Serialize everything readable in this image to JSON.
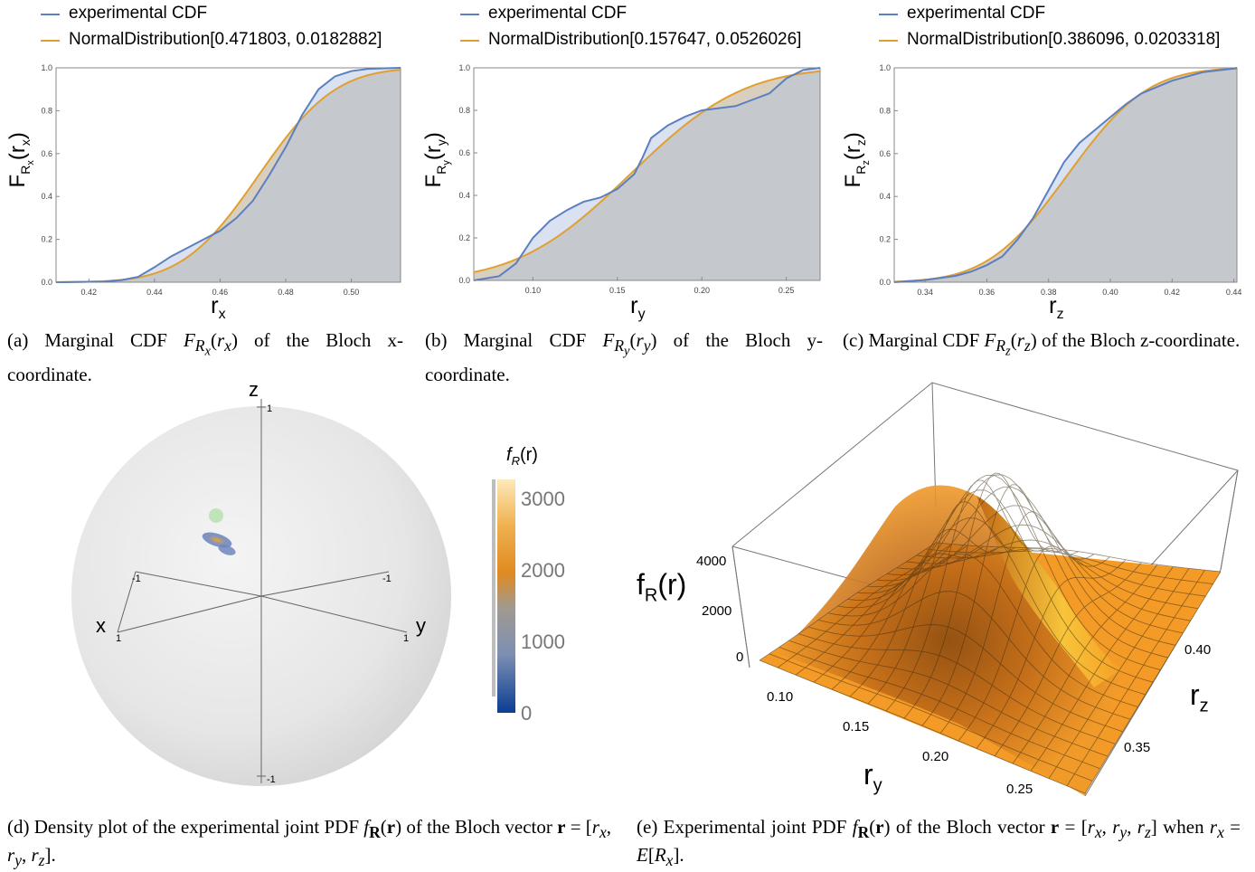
{
  "captions": {
    "a": "(a) Marginal CDF F_{R_x}(r_x) of the Bloch x-coordinate.",
    "b": "(b) Marginal CDF F_{R_y}(r_y) of the Bloch y-coordinate.",
    "c": "(c) Marginal CDF F_{R_z}(r_z) of the Bloch z-coordinate.",
    "d": "(d) Density plot of the experimental joint PDF f_R(r) of the Bloch vector r = [r_x, r_y, r_z].",
    "e": "(e) Experimental joint PDF f_R(r) of the Bloch vector r = [r_x, r_y, r_z] when r_x = E[R_x]."
  },
  "colors": {
    "experimental": "#5b7fbf",
    "normal": "#e0a030",
    "fill": "#d9cfbe",
    "sphere": "#e6e6e6"
  },
  "chart_data": [
    {
      "id": "a",
      "type": "line",
      "xlabel": "r_x",
      "ylabel": "F_{R_x}(r_x)",
      "xlim": [
        0.41,
        0.515
      ],
      "ylim": [
        0,
        1
      ],
      "xticks": [
        "0.42",
        "0.44",
        "0.46",
        "0.48",
        "0.50"
      ],
      "yticks": [
        "0.0",
        "0.2",
        "0.4",
        "0.6",
        "0.8",
        "1.0"
      ],
      "legend": [
        "experimental CDF",
        "NormalDistribution[0.471803, 0.0182882]"
      ],
      "normal": {
        "mean": 0.471803,
        "sd": 0.0182882
      },
      "series": [
        {
          "name": "experimental CDF",
          "x": [
            0.41,
            0.425,
            0.43,
            0.435,
            0.44,
            0.445,
            0.45,
            0.455,
            0.46,
            0.465,
            0.47,
            0.475,
            0.48,
            0.485,
            0.49,
            0.495,
            0.5,
            0.505,
            0.51,
            0.515
          ],
          "y": [
            0.0,
            0.003,
            0.01,
            0.025,
            0.07,
            0.12,
            0.16,
            0.2,
            0.24,
            0.3,
            0.38,
            0.5,
            0.63,
            0.78,
            0.9,
            0.96,
            0.985,
            0.995,
            0.998,
            1.0
          ]
        }
      ]
    },
    {
      "id": "b",
      "type": "line",
      "xlabel": "r_y",
      "ylabel": "F_{R_y}(r_y)",
      "xlim": [
        0.065,
        0.27
      ],
      "ylim": [
        0,
        1
      ],
      "xticks": [
        "0.10",
        "0.15",
        "0.20",
        "0.25"
      ],
      "yticks": [
        "0.0",
        "0.2",
        "0.4",
        "0.6",
        "0.8",
        "1.0"
      ],
      "legend": [
        "experimental CDF",
        "NormalDistribution[0.157647, 0.0526026]"
      ],
      "normal": {
        "mean": 0.157647,
        "sd": 0.0526026
      },
      "series": [
        {
          "name": "experimental CDF",
          "x": [
            0.065,
            0.08,
            0.09,
            0.1,
            0.11,
            0.12,
            0.13,
            0.14,
            0.15,
            0.16,
            0.165,
            0.17,
            0.18,
            0.19,
            0.2,
            0.21,
            0.22,
            0.23,
            0.24,
            0.25,
            0.26,
            0.27
          ],
          "y": [
            0.0,
            0.02,
            0.08,
            0.2,
            0.28,
            0.33,
            0.37,
            0.39,
            0.43,
            0.5,
            0.58,
            0.67,
            0.73,
            0.77,
            0.8,
            0.81,
            0.82,
            0.85,
            0.88,
            0.95,
            0.99,
            1.0
          ]
        }
      ]
    },
    {
      "id": "c",
      "type": "line",
      "xlabel": "r_z",
      "ylabel": "F_{R_z}(r_z)",
      "xlim": [
        0.33,
        0.441
      ],
      "ylim": [
        0,
        1
      ],
      "xticks": [
        "0.34",
        "0.36",
        "0.38",
        "0.40",
        "0.42",
        "0.44"
      ],
      "yticks": [
        "0.0",
        "0.2",
        "0.4",
        "0.6",
        "0.8",
        "1.0"
      ],
      "legend": [
        "experimental CDF",
        "NormalDistribution[0.386096, 0.0203318]"
      ],
      "normal": {
        "mean": 0.386096,
        "sd": 0.0203318
      },
      "series": [
        {
          "name": "experimental CDF",
          "x": [
            0.33,
            0.34,
            0.35,
            0.355,
            0.36,
            0.365,
            0.37,
            0.375,
            0.38,
            0.385,
            0.39,
            0.395,
            0.4,
            0.405,
            0.41,
            0.42,
            0.43,
            0.44,
            0.441
          ],
          "y": [
            0.0,
            0.01,
            0.03,
            0.05,
            0.08,
            0.12,
            0.2,
            0.3,
            0.43,
            0.56,
            0.65,
            0.71,
            0.77,
            0.83,
            0.88,
            0.94,
            0.98,
            0.997,
            1.0
          ]
        }
      ]
    },
    {
      "id": "d",
      "type": "scatter",
      "axis_labels": {
        "x": "x",
        "y": "y",
        "z": "z"
      },
      "tick_labels": {
        "z_top": "1",
        "z_bottom": "-1",
        "x_back": "-1",
        "y_back": "-1",
        "x_front": "1",
        "y_front": "1"
      },
      "colorbar": {
        "title": "f_R(r)",
        "ticks": [
          "0",
          "1000",
          "2000",
          "3000"
        ],
        "range": [
          0,
          3300
        ]
      }
    },
    {
      "id": "e",
      "type": "area",
      "zlabel": "f_R(r)",
      "ylabel": "r_y",
      "xlabel": "r_z",
      "zticks": [
        "0",
        "2000",
        "4000"
      ],
      "yticks": [
        "0.10",
        "0.15",
        "0.20",
        "0.25"
      ],
      "xticks": [
        "0.35",
        "0.40"
      ]
    }
  ]
}
